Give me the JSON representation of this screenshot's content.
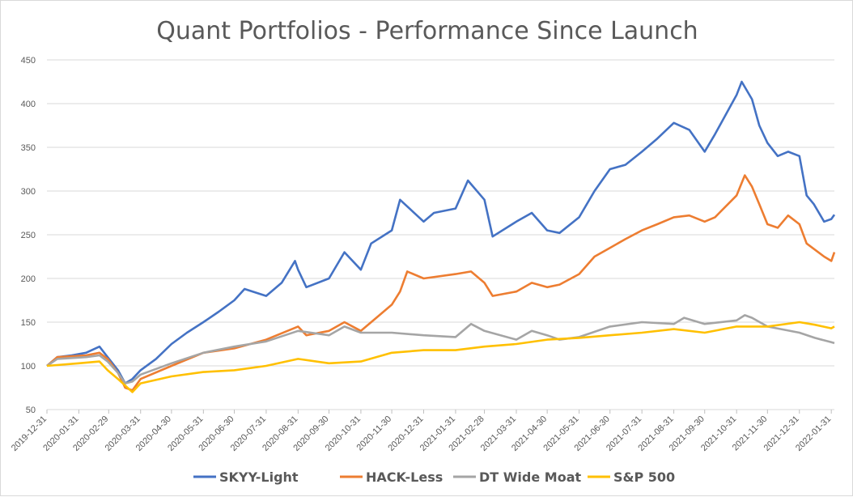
{
  "chart_data": {
    "type": "line",
    "title": "Quant Portfolios - Performance Since Launch",
    "xlabel": "",
    "ylabel": "",
    "ylim": [
      50,
      450
    ],
    "yticks": [
      50,
      100,
      150,
      200,
      250,
      300,
      350,
      400,
      450
    ],
    "grid": true,
    "legend_position": "bottom",
    "x_tick_labels": [
      "2019-12-31",
      "2020-01-31",
      "2020-02-29",
      "2020-03-31",
      "2020-04-30",
      "2020-05-31",
      "2020-06-30",
      "2020-07-31",
      "2020-08-31",
      "2020-09-30",
      "2020-10-31",
      "2020-11-30",
      "2020-12-31",
      "2021-01-31",
      "2021-02-28",
      "2021-03-31",
      "2021-04-30",
      "2021-05-31",
      "2021-06-30",
      "2021-07-31",
      "2021-08-31",
      "2021-09-30",
      "2021-10-31",
      "2021-11-30",
      "2021-12-31",
      "2022-01-31"
    ],
    "x_range": [
      "2019-12-31",
      "2022-02-03"
    ],
    "series": [
      {
        "name": "SKYY-Light",
        "color": "#4472C4",
        "points": [
          [
            "2019-12-31",
            100
          ],
          [
            "2020-01-10",
            110
          ],
          [
            "2020-01-24",
            112
          ],
          [
            "2020-02-07",
            115
          ],
          [
            "2020-02-20",
            122
          ],
          [
            "2020-02-28",
            110
          ],
          [
            "2020-03-09",
            95
          ],
          [
            "2020-03-16",
            80
          ],
          [
            "2020-03-23",
            85
          ],
          [
            "2020-03-31",
            95
          ],
          [
            "2020-04-15",
            108
          ],
          [
            "2020-04-30",
            125
          ],
          [
            "2020-05-15",
            138
          ],
          [
            "2020-05-31",
            150
          ],
          [
            "2020-06-15",
            162
          ],
          [
            "2020-06-30",
            175
          ],
          [
            "2020-07-10",
            188
          ],
          [
            "2020-07-31",
            180
          ],
          [
            "2020-08-15",
            195
          ],
          [
            "2020-08-28",
            220
          ],
          [
            "2020-08-31",
            210
          ],
          [
            "2020-09-08",
            190
          ],
          [
            "2020-09-30",
            200
          ],
          [
            "2020-10-15",
            230
          ],
          [
            "2020-10-31",
            210
          ],
          [
            "2020-11-10",
            240
          ],
          [
            "2020-11-30",
            255
          ],
          [
            "2020-12-08",
            290
          ],
          [
            "2020-12-31",
            265
          ],
          [
            "2021-01-10",
            275
          ],
          [
            "2021-01-31",
            280
          ],
          [
            "2021-02-12",
            312
          ],
          [
            "2021-02-28",
            290
          ],
          [
            "2021-03-08",
            248
          ],
          [
            "2021-03-31",
            265
          ],
          [
            "2021-04-15",
            275
          ],
          [
            "2021-04-30",
            255
          ],
          [
            "2021-05-12",
            252
          ],
          [
            "2021-05-31",
            270
          ],
          [
            "2021-06-15",
            300
          ],
          [
            "2021-06-30",
            325
          ],
          [
            "2021-07-15",
            330
          ],
          [
            "2021-07-31",
            345
          ],
          [
            "2021-08-15",
            360
          ],
          [
            "2021-08-31",
            378
          ],
          [
            "2021-09-15",
            370
          ],
          [
            "2021-09-30",
            345
          ],
          [
            "2021-10-10",
            365
          ],
          [
            "2021-10-31",
            410
          ],
          [
            "2021-11-05",
            425
          ],
          [
            "2021-11-15",
            405
          ],
          [
            "2021-11-22",
            375
          ],
          [
            "2021-11-30",
            355
          ],
          [
            "2021-12-10",
            340
          ],
          [
            "2021-12-20",
            345
          ],
          [
            "2021-12-31",
            340
          ],
          [
            "2022-01-07",
            295
          ],
          [
            "2022-01-14",
            285
          ],
          [
            "2022-01-24",
            265
          ],
          [
            "2022-01-31",
            268
          ],
          [
            "2022-02-03",
            273
          ]
        ]
      },
      {
        "name": "HACK-Less",
        "color": "#ED7D31",
        "points": [
          [
            "2019-12-31",
            100
          ],
          [
            "2020-01-10",
            110
          ],
          [
            "2020-02-07",
            112
          ],
          [
            "2020-02-20",
            115
          ],
          [
            "2020-02-28",
            108
          ],
          [
            "2020-03-09",
            92
          ],
          [
            "2020-03-16",
            75
          ],
          [
            "2020-03-23",
            72
          ],
          [
            "2020-03-31",
            85
          ],
          [
            "2020-04-30",
            100
          ],
          [
            "2020-05-31",
            115
          ],
          [
            "2020-06-30",
            120
          ],
          [
            "2020-07-31",
            130
          ],
          [
            "2020-08-31",
            145
          ],
          [
            "2020-09-08",
            135
          ],
          [
            "2020-09-30",
            140
          ],
          [
            "2020-10-15",
            150
          ],
          [
            "2020-10-31",
            140
          ],
          [
            "2020-11-15",
            155
          ],
          [
            "2020-11-30",
            170
          ],
          [
            "2020-12-08",
            185
          ],
          [
            "2020-12-15",
            208
          ],
          [
            "2020-12-31",
            200
          ],
          [
            "2021-01-31",
            205
          ],
          [
            "2021-02-15",
            208
          ],
          [
            "2021-02-28",
            195
          ],
          [
            "2021-03-08",
            180
          ],
          [
            "2021-03-31",
            185
          ],
          [
            "2021-04-15",
            195
          ],
          [
            "2021-04-30",
            190
          ],
          [
            "2021-05-12",
            193
          ],
          [
            "2021-05-31",
            205
          ],
          [
            "2021-06-15",
            225
          ],
          [
            "2021-06-30",
            235
          ],
          [
            "2021-07-15",
            245
          ],
          [
            "2021-07-31",
            255
          ],
          [
            "2021-08-15",
            262
          ],
          [
            "2021-08-31",
            270
          ],
          [
            "2021-09-15",
            272
          ],
          [
            "2021-09-30",
            265
          ],
          [
            "2021-10-10",
            270
          ],
          [
            "2021-10-31",
            295
          ],
          [
            "2021-11-08",
            318
          ],
          [
            "2021-11-15",
            305
          ],
          [
            "2021-11-22",
            285
          ],
          [
            "2021-11-30",
            262
          ],
          [
            "2021-12-10",
            258
          ],
          [
            "2021-12-20",
            272
          ],
          [
            "2021-12-31",
            262
          ],
          [
            "2022-01-07",
            240
          ],
          [
            "2022-01-24",
            225
          ],
          [
            "2022-01-31",
            220
          ],
          [
            "2022-02-03",
            230
          ]
        ]
      },
      {
        "name": "DT Wide Moat",
        "color": "#A5A5A5",
        "points": [
          [
            "2019-12-31",
            100
          ],
          [
            "2020-01-10",
            108
          ],
          [
            "2020-02-07",
            110
          ],
          [
            "2020-02-20",
            112
          ],
          [
            "2020-02-28",
            105
          ],
          [
            "2020-03-09",
            92
          ],
          [
            "2020-03-16",
            80
          ],
          [
            "2020-03-23",
            82
          ],
          [
            "2020-03-31",
            90
          ],
          [
            "2020-04-30",
            103
          ],
          [
            "2020-05-31",
            115
          ],
          [
            "2020-06-30",
            122
          ],
          [
            "2020-07-31",
            128
          ],
          [
            "2020-08-31",
            140
          ],
          [
            "2020-09-30",
            135
          ],
          [
            "2020-10-15",
            145
          ],
          [
            "2020-10-31",
            138
          ],
          [
            "2020-11-30",
            138
          ],
          [
            "2020-12-31",
            135
          ],
          [
            "2021-01-31",
            133
          ],
          [
            "2021-02-15",
            148
          ],
          [
            "2021-02-28",
            140
          ],
          [
            "2021-03-31",
            130
          ],
          [
            "2021-04-15",
            140
          ],
          [
            "2021-04-30",
            135
          ],
          [
            "2021-05-12",
            130
          ],
          [
            "2021-05-31",
            133
          ],
          [
            "2021-06-30",
            145
          ],
          [
            "2021-07-31",
            150
          ],
          [
            "2021-08-31",
            148
          ],
          [
            "2021-09-10",
            155
          ],
          [
            "2021-09-30",
            148
          ],
          [
            "2021-10-31",
            152
          ],
          [
            "2021-11-08",
            158
          ],
          [
            "2021-11-15",
            155
          ],
          [
            "2021-11-30",
            145
          ],
          [
            "2021-12-31",
            138
          ],
          [
            "2022-01-15",
            132
          ],
          [
            "2022-01-31",
            127
          ],
          [
            "2022-02-03",
            126
          ]
        ]
      },
      {
        "name": "S&P 500",
        "color": "#FFC000",
        "points": [
          [
            "2019-12-31",
            100
          ],
          [
            "2020-01-31",
            103
          ],
          [
            "2020-02-20",
            105
          ],
          [
            "2020-02-28",
            95
          ],
          [
            "2020-03-09",
            85
          ],
          [
            "2020-03-23",
            70
          ],
          [
            "2020-03-31",
            80
          ],
          [
            "2020-04-30",
            88
          ],
          [
            "2020-05-31",
            93
          ],
          [
            "2020-06-30",
            95
          ],
          [
            "2020-07-31",
            100
          ],
          [
            "2020-08-31",
            108
          ],
          [
            "2020-09-30",
            103
          ],
          [
            "2020-10-31",
            105
          ],
          [
            "2020-11-30",
            115
          ],
          [
            "2020-12-31",
            118
          ],
          [
            "2021-01-31",
            118
          ],
          [
            "2021-02-28",
            122
          ],
          [
            "2021-03-31",
            125
          ],
          [
            "2021-04-30",
            130
          ],
          [
            "2021-05-31",
            132
          ],
          [
            "2021-06-30",
            135
          ],
          [
            "2021-07-31",
            138
          ],
          [
            "2021-08-31",
            142
          ],
          [
            "2021-09-30",
            138
          ],
          [
            "2021-10-31",
            145
          ],
          [
            "2021-11-30",
            145
          ],
          [
            "2021-12-31",
            150
          ],
          [
            "2022-01-15",
            147
          ],
          [
            "2022-01-31",
            143
          ],
          [
            "2022-02-03",
            145
          ]
        ]
      }
    ]
  }
}
